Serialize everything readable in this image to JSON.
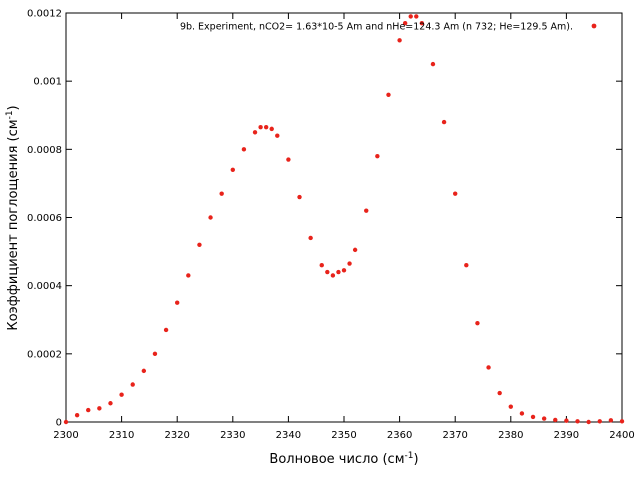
{
  "chart_data": {
    "type": "scatter",
    "xlabel": {
      "main": "Волновое число (см",
      "sup": "-1",
      "tail": ")"
    },
    "ylabel": {
      "main": "Коэффициент поглощения (см",
      "sup": "-1",
      "tail": ")"
    },
    "xlim": [
      2300,
      2400
    ],
    "ylim": [
      0,
      0.0012
    ],
    "x_ticks": [
      2300,
      2310,
      2320,
      2330,
      2340,
      2350,
      2360,
      2370,
      2380,
      2390,
      2400
    ],
    "y_ticks": [
      "0",
      "0.0002",
      "0.0004",
      "0.0006",
      "0.0008",
      "0.001",
      "0.0012"
    ],
    "legend_position": "top-right",
    "series": [
      {
        "name": "9b. Experiment, nCO2= 1.63*10-5 Am and nHe=124.3 Am (n 732; He=129.5 Am).",
        "color": "#e8231b",
        "marker": "circle",
        "x": [
          2300.0,
          2302.0,
          2304.0,
          2306.0,
          2308.0,
          2310.0,
          2312.0,
          2314.0,
          2316.0,
          2318.0,
          2320.0,
          2322.0,
          2324.0,
          2326.0,
          2328.0,
          2330.0,
          2332.0,
          2334.0,
          2335.0,
          2336.0,
          2337.0,
          2338.0,
          2340.0,
          2342.0,
          2344.0,
          2346.0,
          2347.0,
          2348.0,
          2349.0,
          2350.0,
          2351.0,
          2352.0,
          2354.0,
          2356.0,
          2358.0,
          2360.0,
          2361.0,
          2362.0,
          2363.0,
          2364.0,
          2366.0,
          2368.0,
          2370.0,
          2372.0,
          2374.0,
          2376.0,
          2378.0,
          2380.0,
          2382.0,
          2384.0,
          2386.0,
          2388.0,
          2390.0,
          2392.0,
          2394.0,
          2396.0,
          2398.0,
          2400.0
        ],
        "y": [
          0.0,
          2e-05,
          3.5e-05,
          4e-05,
          5.5e-05,
          8e-05,
          0.00011,
          0.00015,
          0.0002,
          0.00027,
          0.00035,
          0.00043,
          0.00052,
          0.0006,
          0.00067,
          0.00074,
          0.0008,
          0.00085,
          0.000865,
          0.000865,
          0.00086,
          0.00084,
          0.00077,
          0.00066,
          0.00054,
          0.00046,
          0.00044,
          0.00043,
          0.00044,
          0.000445,
          0.000465,
          0.000505,
          0.00062,
          0.00078,
          0.00096,
          0.00112,
          0.00117,
          0.00119,
          0.00119,
          0.00117,
          0.00105,
          0.00088,
          0.00067,
          0.00046,
          0.00029,
          0.00016,
          8.5e-05,
          4.5e-05,
          2.5e-05,
          1.5e-05,
          1e-05,
          6e-06,
          4e-06,
          2e-06,
          0.0,
          2e-06,
          5e-06,
          2e-06
        ]
      }
    ]
  }
}
